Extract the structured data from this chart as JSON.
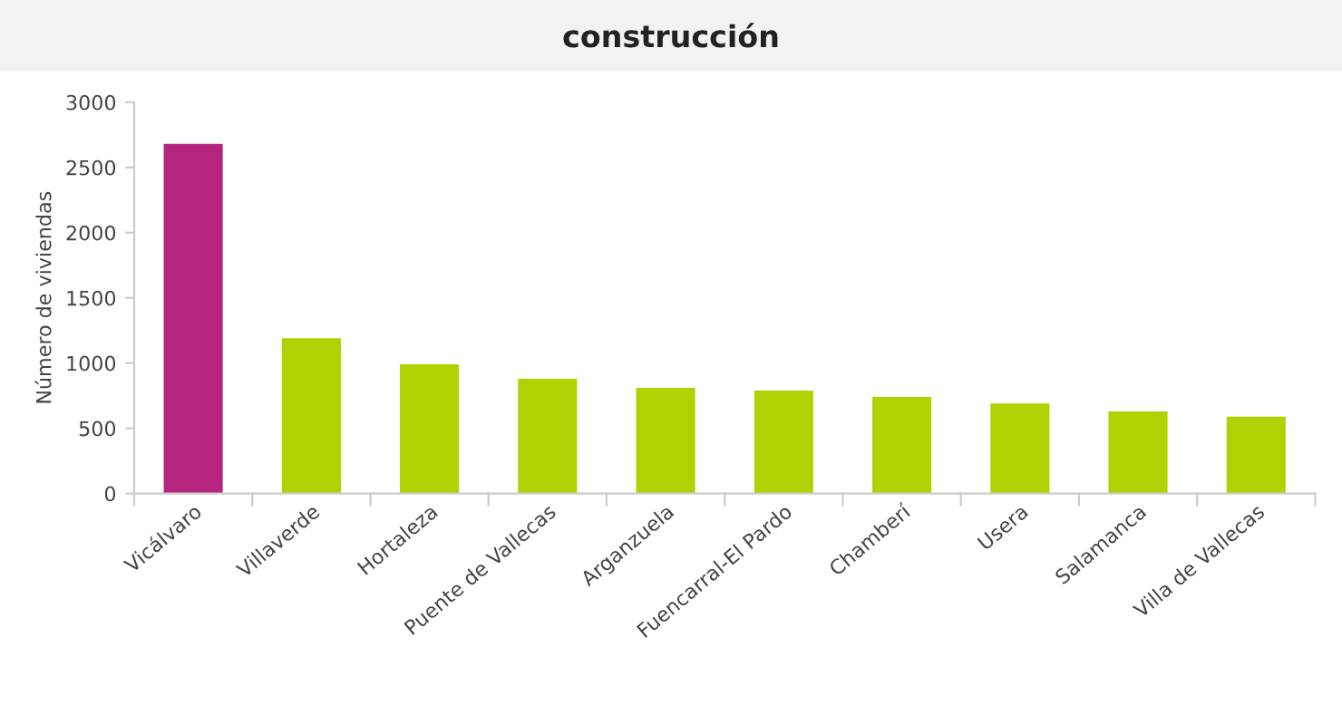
{
  "chart_data": {
    "type": "bar",
    "title": "construcción",
    "ylabel": "Número de viviendas",
    "categories": [
      "Vicálvaro",
      "Villaverde",
      "Hortaleza",
      "Puente de Vallecas",
      "Arganzuela",
      "Fuencarral-El Pardo",
      "Chamberí",
      "Usera",
      "Salamanca",
      "Villa de Vallecas"
    ],
    "values": [
      2680,
      1190,
      990,
      880,
      810,
      790,
      740,
      690,
      630,
      590
    ],
    "colors": [
      "#b5247f",
      "#b2d102",
      "#b2d102",
      "#b2d102",
      "#b2d102",
      "#b2d102",
      "#b2d102",
      "#b2d102",
      "#b2d102",
      "#b2d102"
    ],
    "ylim": [
      0,
      3000
    ],
    "yticks": [
      0,
      500,
      1000,
      1500,
      2000,
      2500,
      3000
    ],
    "grid": false,
    "legend": false
  }
}
